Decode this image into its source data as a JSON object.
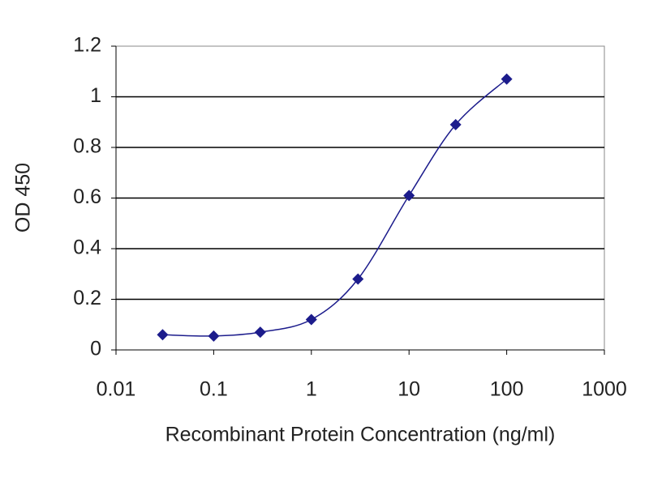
{
  "chart_data": {
    "type": "line",
    "x_label": "Recombinant Protein Concentration (ng/ml)",
    "y_label": "OD 450",
    "x": [
      0.03,
      0.1,
      0.3,
      1,
      3,
      10,
      30,
      100
    ],
    "series": [
      {
        "color": "#1c1c8c",
        "values": [
          0.06,
          0.055,
          0.07,
          0.12,
          0.28,
          0.61,
          0.89,
          1.07
        ]
      }
    ],
    "xlog": true,
    "xlim": [
      0.01,
      1000
    ],
    "xticks": [
      0.01,
      0.1,
      1,
      10,
      100,
      1000
    ],
    "ylim": [
      0,
      1.2
    ],
    "yticks": [
      0,
      0.2,
      0.4,
      0.6,
      0.8,
      1,
      1.2
    ],
    "grid": true
  }
}
